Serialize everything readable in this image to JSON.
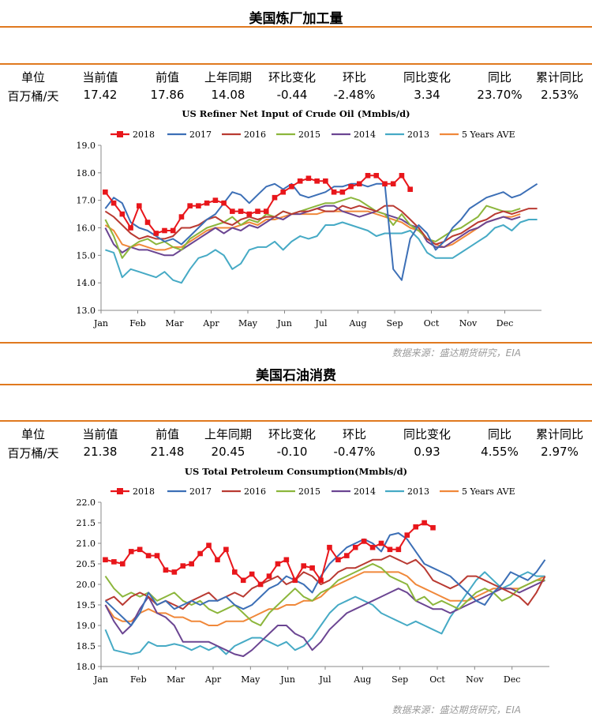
{
  "sections": [
    {
      "title": "美国炼厂加工量",
      "stats_headers": [
        "单位",
        "当前值",
        "前值",
        "上年同期",
        "环比变化",
        "环比",
        "同比变化",
        "同比",
        "累计同比"
      ],
      "stats_values": [
        "百万桶/天",
        "17.42",
        "17.86",
        "14.08",
        "-0.44",
        "-2.48%",
        "3.34",
        "23.70%",
        "2.53%"
      ],
      "source": "数据来源：盛达期货研究，EIA"
    },
    {
      "title": "美国石油消费",
      "stats_headers": [
        "单位",
        "当前值",
        "前值",
        "上年同期",
        "环比变化",
        "环比",
        "同比变化",
        "同比",
        "累计同比"
      ],
      "stats_values": [
        "百万桶/天",
        "21.38",
        "21.48",
        "20.45",
        "-0.10",
        "-0.47%",
        "0.93",
        "4.55%",
        "2.97%"
      ],
      "source": "数据来源：盛达期货研究，EIA"
    }
  ],
  "chart_data": [
    {
      "type": "line",
      "title": "US Refiner Net Input of Crude Oil (Mmbls/d)",
      "xlabel": "",
      "ylabel": "",
      "ylim": [
        13.0,
        19.0
      ],
      "y_ticks": [
        "13.0",
        "14.0",
        "15.0",
        "16.0",
        "17.0",
        "18.0",
        "19.0"
      ],
      "x_ticks": [
        "Jan",
        "Feb",
        "Mar",
        "Apr",
        "May",
        "Jun",
        "Jul",
        "Aug",
        "Sep",
        "Oct",
        "Nov",
        "Dec"
      ],
      "weeks": 52,
      "legend_position": "top",
      "grid": false,
      "series": [
        {
          "name": "2018",
          "color": "#E8161B",
          "marker": true,
          "values": [
            17.3,
            16.9,
            16.5,
            16.0,
            16.8,
            16.2,
            15.8,
            15.9,
            15.9,
            16.4,
            16.8,
            16.8,
            16.9,
            17.0,
            16.9,
            16.6,
            16.6,
            16.5,
            16.6,
            16.6,
            17.1,
            17.3,
            17.5,
            17.7,
            17.8,
            17.7,
            17.7,
            17.3,
            17.3,
            17.5,
            17.6,
            17.9,
            17.9,
            17.6,
            17.6,
            17.9,
            17.4
          ]
        },
        {
          "name": "2017",
          "color": "#3C6FB6",
          "values": [
            16.7,
            17.1,
            16.9,
            16.2,
            16.0,
            15.9,
            15.7,
            15.5,
            15.6,
            15.4,
            15.7,
            16.0,
            16.3,
            16.5,
            16.9,
            17.3,
            17.2,
            16.9,
            17.2,
            17.5,
            17.6,
            17.4,
            17.6,
            17.2,
            17.1,
            17.2,
            17.3,
            17.5,
            17.5,
            17.6,
            17.6,
            17.5,
            17.6,
            17.6,
            14.5,
            14.1,
            15.6,
            16.1,
            15.8,
            15.2,
            15.5,
            16.0,
            16.3,
            16.7,
            16.9,
            17.1,
            17.2,
            17.3,
            17.1,
            17.2,
            17.4,
            17.6
          ]
        },
        {
          "name": "2016",
          "color": "#B93A32",
          "values": [
            16.6,
            16.4,
            16.1,
            15.8,
            15.6,
            15.7,
            15.6,
            15.6,
            15.7,
            16.0,
            16.0,
            16.1,
            16.3,
            16.4,
            16.2,
            16.1,
            16.3,
            16.4,
            16.3,
            16.4,
            16.4,
            16.6,
            16.5,
            16.6,
            16.6,
            16.7,
            16.6,
            16.6,
            16.8,
            16.7,
            16.8,
            16.7,
            16.6,
            16.8,
            16.8,
            16.6,
            16.3,
            16.0,
            15.6,
            15.4,
            15.5,
            15.7,
            15.8,
            16.0,
            16.2,
            16.3,
            16.5,
            16.6,
            16.5,
            16.6,
            16.7,
            16.7
          ]
        },
        {
          "name": "2015",
          "color": "#8CB63C",
          "values": [
            16.3,
            15.7,
            14.9,
            15.3,
            15.5,
            15.6,
            15.4,
            15.5,
            15.3,
            15.2,
            15.6,
            15.8,
            16.0,
            16.1,
            16.2,
            16.4,
            16.1,
            16.3,
            16.2,
            16.5,
            16.4,
            16.6,
            16.5,
            16.6,
            16.7,
            16.8,
            16.9,
            16.9,
            17.0,
            17.1,
            17.0,
            16.8,
            16.6,
            16.5,
            16.1,
            16.5,
            16.1,
            15.9,
            15.6,
            15.5,
            15.7,
            15.9,
            16.0,
            16.2,
            16.4,
            16.8,
            16.7,
            16.6,
            16.6,
            16.7
          ]
        },
        {
          "name": "2014",
          "color": "#6B4592",
          "values": [
            16.0,
            15.4,
            15.1,
            15.3,
            15.2,
            15.2,
            15.1,
            15.0,
            15.0,
            15.2,
            15.4,
            15.6,
            15.8,
            16.0,
            15.8,
            16.0,
            15.9,
            16.1,
            16.0,
            16.2,
            16.4,
            16.3,
            16.5,
            16.5,
            16.6,
            16.7,
            16.8,
            16.8,
            16.6,
            16.5,
            16.4,
            16.5,
            16.6,
            16.5,
            16.4,
            16.3,
            16.1,
            16.0,
            15.5,
            15.3,
            15.3,
            15.5,
            15.7,
            15.9,
            16.0,
            16.2,
            16.3,
            16.4,
            16.3,
            16.4
          ]
        },
        {
          "name": "2013",
          "color": "#46AAC5",
          "values": [
            15.2,
            15.1,
            14.2,
            14.5,
            14.4,
            14.3,
            14.2,
            14.4,
            14.1,
            14.0,
            14.5,
            14.9,
            15.0,
            15.2,
            15.0,
            14.5,
            14.7,
            15.2,
            15.3,
            15.3,
            15.5,
            15.2,
            15.5,
            15.7,
            15.6,
            15.7,
            16.1,
            16.1,
            16.2,
            16.1,
            16.0,
            15.9,
            15.7,
            15.8,
            15.8,
            15.8,
            15.9,
            15.6,
            15.1,
            14.9,
            14.9,
            14.9,
            15.1,
            15.3,
            15.5,
            15.7,
            16.0,
            16.1,
            15.9,
            16.2,
            16.3,
            16.3
          ]
        },
        {
          "name": "5 Years AVE",
          "color": "#F0883A",
          "values": [
            16.1,
            15.9,
            15.4,
            15.3,
            15.4,
            15.3,
            15.2,
            15.2,
            15.3,
            15.3,
            15.5,
            15.7,
            15.9,
            16.0,
            16.0,
            16.0,
            16.1,
            16.2,
            16.1,
            16.3,
            16.3,
            16.4,
            16.5,
            16.5,
            16.5,
            16.5,
            16.6,
            16.6,
            16.6,
            16.6,
            16.6,
            16.6,
            16.5,
            16.4,
            16.3,
            16.2,
            16.0,
            15.9,
            15.6,
            15.4,
            15.3,
            15.4,
            15.6,
            15.8,
            16.0,
            16.2,
            16.3,
            16.4,
            16.4,
            16.5
          ]
        }
      ]
    },
    {
      "type": "line",
      "title": "US Total Petroleum Consumption(Mmbls/d)",
      "xlabel": "",
      "ylabel": "",
      "ylim": [
        18.0,
        22.0
      ],
      "y_ticks": [
        "18.0",
        "18.5",
        "19.0",
        "19.5",
        "20.0",
        "20.5",
        "21.0",
        "21.5",
        "22.0"
      ],
      "x_ticks": [
        "Jan",
        "Feb",
        "Mar",
        "Apr",
        "May",
        "Jun",
        "Jul",
        "Aug",
        "Sep",
        "Oct",
        "Nov",
        "Dec"
      ],
      "weeks": 52,
      "legend_position": "top",
      "grid": false,
      "series": [
        {
          "name": "2018",
          "color": "#E8161B",
          "marker": true,
          "values": [
            20.6,
            20.55,
            20.5,
            20.8,
            20.85,
            20.7,
            20.7,
            20.35,
            20.3,
            20.45,
            20.5,
            20.75,
            20.95,
            20.6,
            20.85,
            20.3,
            20.1,
            20.25,
            20.0,
            20.2,
            20.5,
            20.6,
            20.1,
            20.45,
            20.4,
            20.1,
            20.9,
            20.6,
            20.7,
            20.9,
            21.05,
            20.9,
            21.0,
            20.85,
            20.85,
            21.2,
            21.4,
            21.5,
            21.38
          ]
        },
        {
          "name": "2017",
          "color": "#3C6FB6",
          "values": [
            19.6,
            19.4,
            19.2,
            19.0,
            19.3,
            19.8,
            19.5,
            19.6,
            19.4,
            19.5,
            19.6,
            19.5,
            19.6,
            19.6,
            19.7,
            19.5,
            19.4,
            19.5,
            19.7,
            19.9,
            20.0,
            20.2,
            20.1,
            20.0,
            19.8,
            20.2,
            20.5,
            20.7,
            20.9,
            21.0,
            21.1,
            21.0,
            20.8,
            21.2,
            21.25,
            21.1,
            20.8,
            20.5,
            20.4,
            20.3,
            20.2,
            20.0,
            19.8,
            19.6,
            19.5,
            19.8,
            20.0,
            20.3,
            20.2,
            20.1,
            20.3,
            20.6
          ]
        },
        {
          "name": "2016",
          "color": "#B93A32",
          "values": [
            19.6,
            19.7,
            19.5,
            19.7,
            19.8,
            19.7,
            19.5,
            19.6,
            19.5,
            19.4,
            19.6,
            19.7,
            19.8,
            19.6,
            19.7,
            19.8,
            19.7,
            19.9,
            20.0,
            20.1,
            20.2,
            20.0,
            20.1,
            20.3,
            20.2,
            20.0,
            20.1,
            20.3,
            20.4,
            20.4,
            20.5,
            20.6,
            20.6,
            20.7,
            20.6,
            20.5,
            20.6,
            20.4,
            20.1,
            20.0,
            19.9,
            20.0,
            20.2,
            20.2,
            20.1,
            20.0,
            19.9,
            19.8,
            19.7,
            19.5,
            19.8,
            20.2
          ]
        },
        {
          "name": "2015",
          "color": "#8CB63C",
          "values": [
            20.2,
            19.9,
            19.7,
            19.8,
            19.7,
            19.8,
            19.6,
            19.7,
            19.8,
            19.6,
            19.5,
            19.6,
            19.4,
            19.3,
            19.4,
            19.5,
            19.3,
            19.1,
            19.0,
            19.3,
            19.5,
            19.7,
            19.9,
            19.7,
            19.6,
            19.8,
            19.9,
            20.1,
            20.2,
            20.3,
            20.4,
            20.5,
            20.4,
            20.2,
            20.1,
            20.0,
            19.6,
            19.7,
            19.5,
            19.6,
            19.5,
            19.4,
            19.6,
            19.8,
            19.9,
            19.8,
            19.6,
            19.7,
            19.9,
            20.0,
            20.1,
            20.1
          ]
        },
        {
          "name": "2014",
          "color": "#6B4592",
          "values": [
            19.5,
            19.1,
            18.8,
            19.0,
            19.4,
            19.7,
            19.3,
            19.2,
            19.0,
            18.6,
            18.6,
            18.6,
            18.6,
            18.5,
            18.4,
            18.3,
            18.25,
            18.4,
            18.6,
            18.8,
            19.0,
            19.0,
            18.8,
            18.7,
            18.4,
            18.6,
            18.9,
            19.1,
            19.3,
            19.4,
            19.5,
            19.6,
            19.7,
            19.8,
            19.9,
            19.8,
            19.6,
            19.5,
            19.4,
            19.4,
            19.3,
            19.4,
            19.5,
            19.6,
            19.7,
            19.8,
            19.9,
            19.9,
            19.8,
            19.9,
            20.0,
            20.1
          ]
        },
        {
          "name": "2013",
          "color": "#46AAC5",
          "values": [
            18.9,
            18.4,
            18.35,
            18.3,
            18.35,
            18.6,
            18.5,
            18.5,
            18.55,
            18.5,
            18.4,
            18.5,
            18.4,
            18.5,
            18.3,
            18.5,
            18.6,
            18.7,
            18.7,
            18.6,
            18.5,
            18.6,
            18.4,
            18.5,
            18.7,
            19.0,
            19.3,
            19.5,
            19.6,
            19.7,
            19.6,
            19.5,
            19.3,
            19.2,
            19.1,
            19.0,
            19.1,
            19.0,
            18.9,
            18.8,
            19.2,
            19.5,
            19.8,
            20.1,
            20.3,
            20.1,
            19.9,
            20.0,
            20.2,
            20.3,
            20.2,
            20.2
          ]
        },
        {
          "name": "5 Years AVE",
          "color": "#F0883A",
          "values": [
            19.5,
            19.2,
            19.1,
            19.1,
            19.3,
            19.4,
            19.3,
            19.3,
            19.2,
            19.2,
            19.1,
            19.1,
            19.0,
            19.0,
            19.1,
            19.1,
            19.1,
            19.2,
            19.3,
            19.4,
            19.4,
            19.5,
            19.5,
            19.6,
            19.6,
            19.7,
            19.9,
            20.0,
            20.1,
            20.2,
            20.3,
            20.3,
            20.3,
            20.3,
            20.3,
            20.2,
            20.0,
            19.9,
            19.8,
            19.7,
            19.6,
            19.6,
            19.6,
            19.7,
            19.8,
            19.9,
            19.9,
            19.9,
            19.9,
            20.0,
            20.1,
            20.2
          ]
        }
      ]
    }
  ]
}
